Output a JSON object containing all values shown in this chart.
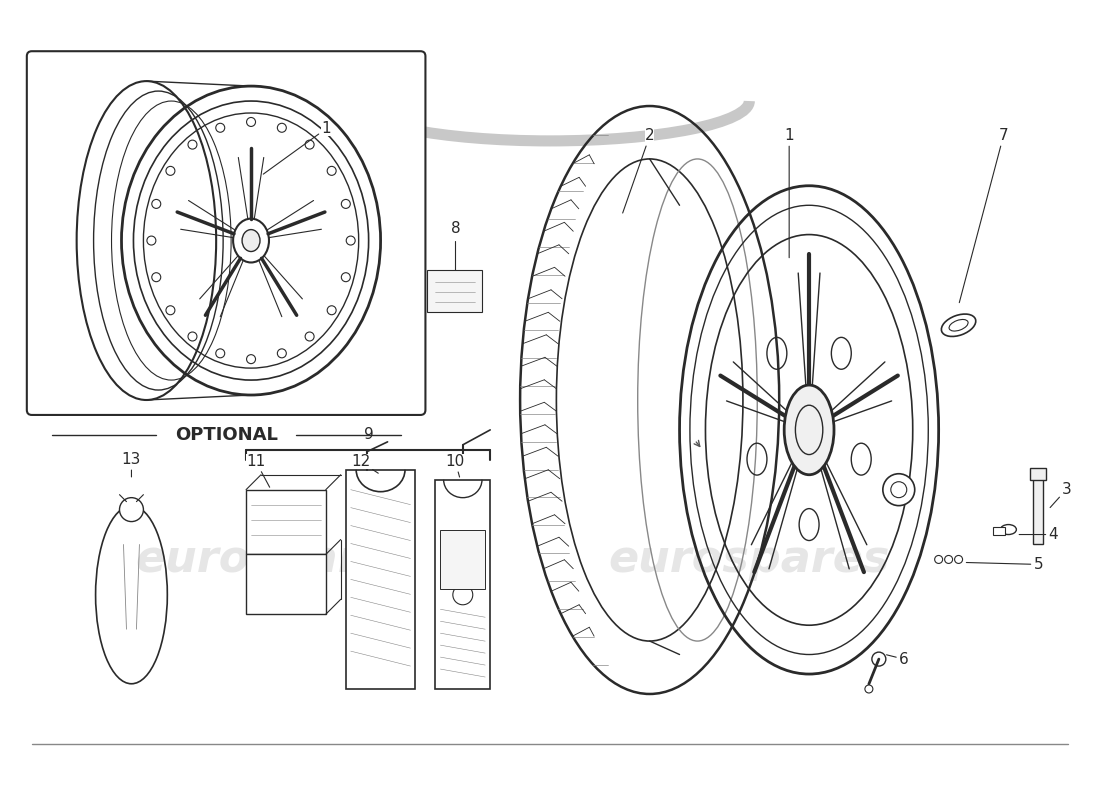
{
  "background_color": "#ffffff",
  "watermark_text": "eurospares",
  "watermark_color": "#c8c8c8",
  "watermark_alpha": 0.45,
  "line_color": "#2a2a2a",
  "light_line_color": "#888888",
  "figsize": [
    11.0,
    8.0
  ],
  "dpi": 100
}
